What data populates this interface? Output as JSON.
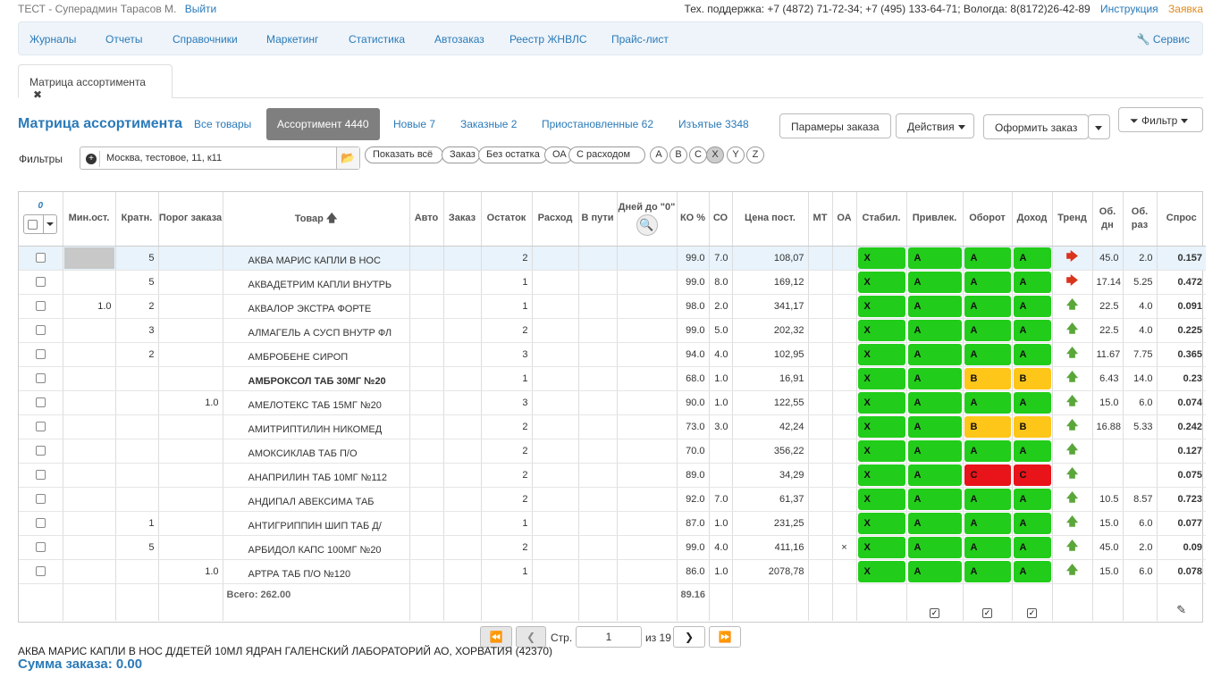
{
  "header": {
    "user": "ТЕСТ - Суперадмин Тарасов М.",
    "logout": "Выйти",
    "support": "Тех. поддержка: +7 (4872) 71-72-34; +7 (495) 133-64-71; Вологда: 8(8172)26-42-89",
    "manual": "Инструкция",
    "request": "Заявка"
  },
  "nav": {
    "items": [
      "Журналы",
      "Отчеты",
      "Справочники",
      "Маркетинг",
      "Статистика",
      "Автозаказ",
      "Реестр ЖНВЛС",
      "Прайс-лист"
    ],
    "service": "Сервис"
  },
  "page_tab": {
    "label": "Матрица ассортимента",
    "close": "✖"
  },
  "title": "Матрица ассортимента",
  "pills": [
    "Все товары",
    "Ассортимент 4440",
    "Новые 7",
    "Заказные 2",
    "Приостановленные 62",
    "Изъятые 3348"
  ],
  "buttons": {
    "order_params": "Парамеры заказа",
    "actions": "Действия",
    "place_order": "Оформить заказ",
    "filter": "Фильтр"
  },
  "filters": {
    "label": "Фильтры",
    "location": "Москва, тестовое, 11, к11",
    "chips": [
      "Показать всё",
      "Заказ",
      "Без остатка",
      "ОА",
      "С расходом"
    ],
    "letters": [
      "A",
      "B",
      "C",
      "X",
      "Y",
      "Z"
    ],
    "selected_letter": "X"
  },
  "table": {
    "selected_count": "0",
    "columns": [
      "",
      "Мин.ост.",
      "Кратн.",
      "Порог заказа",
      "Товар",
      "Авто",
      "Заказ",
      "Остаток",
      "Расход",
      "В пути",
      "Дней до \"0\"",
      "КО %",
      "СО",
      "Цена пост.",
      "МТ",
      "ОА",
      "Стабил.",
      "Привлек.",
      "Оборот",
      "Доход",
      "Тренд",
      "Об. дн",
      "Об. раз",
      "Спрос"
    ],
    "rows": [
      {
        "min": "",
        "krat": "5",
        "porog": "",
        "name": "АКВА МАРИС КАПЛИ В НОС",
        "bold": false,
        "ost": "2",
        "ko": "99.0",
        "so": "7.0",
        "price": "108,07",
        "oa": "",
        "stab": "X",
        "priv": "A",
        "obor": "A",
        "doh": "A",
        "trend": "down",
        "obdn": "45.0",
        "obraz": "2.0",
        "spros": "0.157"
      },
      {
        "min": "",
        "krat": "5",
        "porog": "",
        "name": "АКВАДЕТРИМ КАПЛИ ВНУТРЬ",
        "bold": false,
        "ost": "1",
        "ko": "99.0",
        "so": "8.0",
        "price": "169,12",
        "oa": "",
        "stab": "X",
        "priv": "A",
        "obor": "A",
        "doh": "A",
        "trend": "down",
        "obdn": "17.14",
        "obraz": "5.25",
        "spros": "0.472"
      },
      {
        "min": "1.0",
        "krat": "2",
        "porog": "",
        "name": "АКВАЛОР ЭКСТРА ФОРТЕ",
        "bold": false,
        "ost": "1",
        "ko": "98.0",
        "so": "2.0",
        "price": "341,17",
        "oa": "",
        "stab": "X",
        "priv": "A",
        "obor": "A",
        "doh": "A",
        "trend": "up",
        "obdn": "22.5",
        "obraz": "4.0",
        "spros": "0.091"
      },
      {
        "min": "",
        "krat": "3",
        "porog": "",
        "name": "АЛМАГЕЛЬ А СУСП ВНУТР ФЛ",
        "bold": false,
        "ost": "2",
        "ko": "99.0",
        "so": "5.0",
        "price": "202,32",
        "oa": "",
        "stab": "X",
        "priv": "A",
        "obor": "A",
        "doh": "A",
        "trend": "up",
        "obdn": "22.5",
        "obraz": "4.0",
        "spros": "0.225"
      },
      {
        "min": "",
        "krat": "2",
        "porog": "",
        "name": "АМБРОБЕНЕ СИРОП",
        "bold": false,
        "ost": "3",
        "ko": "94.0",
        "so": "4.0",
        "price": "102,95",
        "oa": "",
        "stab": "X",
        "priv": "A",
        "obor": "A",
        "doh": "A",
        "trend": "up",
        "obdn": "11.67",
        "obraz": "7.75",
        "spros": "0.365"
      },
      {
        "min": "",
        "krat": "",
        "porog": "",
        "name": "АМБРОКСОЛ ТАБ 30МГ №20",
        "bold": true,
        "ost": "1",
        "ko": "68.0",
        "so": "1.0",
        "price": "16,91",
        "oa": "",
        "stab": "X",
        "priv": "A",
        "obor": "B",
        "doh": "B",
        "trend": "up",
        "obdn": "6.43",
        "obraz": "14.0",
        "spros": "0.23"
      },
      {
        "min": "",
        "krat": "",
        "porog": "1.0",
        "name": "АМЕЛОТЕКС ТАБ 15МГ №20",
        "bold": false,
        "ost": "3",
        "ko": "90.0",
        "so": "1.0",
        "price": "122,55",
        "oa": "",
        "stab": "X",
        "priv": "A",
        "obor": "A",
        "doh": "A",
        "trend": "up",
        "obdn": "15.0",
        "obraz": "6.0",
        "spros": "0.074"
      },
      {
        "min": "",
        "krat": "",
        "porog": "",
        "name": "АМИТРИПТИЛИН НИКОМЕД",
        "bold": false,
        "ost": "2",
        "ko": "73.0",
        "so": "3.0",
        "price": "42,24",
        "oa": "",
        "stab": "X",
        "priv": "A",
        "obor": "B",
        "doh": "B",
        "trend": "up",
        "obdn": "16.88",
        "obraz": "5.33",
        "spros": "0.242"
      },
      {
        "min": "",
        "krat": "",
        "porog": "",
        "name": "АМОКСИКЛАВ ТАБ П/О",
        "bold": false,
        "ost": "2",
        "ko": "70.0",
        "so": "",
        "price": "356,22",
        "oa": "",
        "stab": "X",
        "priv": "A",
        "obor": "A",
        "doh": "A",
        "trend": "up",
        "obdn": "",
        "obraz": "",
        "spros": "0.127"
      },
      {
        "min": "",
        "krat": "",
        "porog": "",
        "name": "АНАПРИЛИН ТАБ 10МГ №112",
        "bold": false,
        "ost": "2",
        "ko": "89.0",
        "so": "",
        "price": "34,29",
        "oa": "",
        "stab": "X",
        "priv": "A",
        "obor": "C",
        "doh": "C",
        "trend": "up",
        "obdn": "",
        "obraz": "",
        "spros": "0.075"
      },
      {
        "min": "",
        "krat": "",
        "porog": "",
        "name": "АНДИПАЛ АВЕКСИМА ТАБ",
        "bold": false,
        "ost": "2",
        "ko": "92.0",
        "so": "7.0",
        "price": "61,37",
        "oa": "",
        "stab": "X",
        "priv": "A",
        "obor": "A",
        "doh": "A",
        "trend": "up",
        "obdn": "10.5",
        "obraz": "8.57",
        "spros": "0.723"
      },
      {
        "min": "",
        "krat": "1",
        "porog": "",
        "name": "АНТИГРИППИН ШИП ТАБ Д/",
        "bold": false,
        "ost": "1",
        "ko": "87.0",
        "so": "1.0",
        "price": "231,25",
        "oa": "",
        "stab": "X",
        "priv": "A",
        "obor": "A",
        "doh": "A",
        "trend": "up",
        "obdn": "15.0",
        "obraz": "6.0",
        "spros": "0.077"
      },
      {
        "min": "",
        "krat": "5",
        "porog": "",
        "name": "АРБИДОЛ КАПС 100МГ №20",
        "bold": false,
        "ost": "2",
        "ko": "99.0",
        "so": "4.0",
        "price": "411,16",
        "oa": "×",
        "stab": "X",
        "priv": "A",
        "obor": "A",
        "doh": "A",
        "trend": "up",
        "obdn": "45.0",
        "obraz": "2.0",
        "spros": "0.09"
      },
      {
        "min": "",
        "krat": "",
        "porog": "1.0",
        "name": "АРТРА ТАБ П/О №120",
        "bold": false,
        "ost": "1",
        "ko": "86.0",
        "so": "1.0",
        "price": "2078,78",
        "oa": "",
        "stab": "X",
        "priv": "A",
        "obor": "A",
        "doh": "A",
        "trend": "up",
        "obdn": "15.0",
        "obraz": "6.0",
        "spros": "0.078"
      }
    ],
    "total_label": "Всего: 262.00",
    "total_ko": "89.16"
  },
  "pager": {
    "page_label": "Стр.",
    "page": "1",
    "of": "из 19"
  },
  "footer": {
    "description": "АКВА МАРИС КАПЛИ В НОС Д/ДЕТЕЙ 10МЛ ЯДРАН ГАЛЕНСКИЙ ЛАБОРАТОРИЙ АО, ХОРВАТИЯ (42370)",
    "sum": "Сумма заказа: 0.00"
  },
  "colors": {
    "accent": "#2a7ab8",
    "green": "#22cc1a",
    "yellow": "#ffc61a",
    "red": "#e8141a",
    "request": "#e08a1e"
  }
}
